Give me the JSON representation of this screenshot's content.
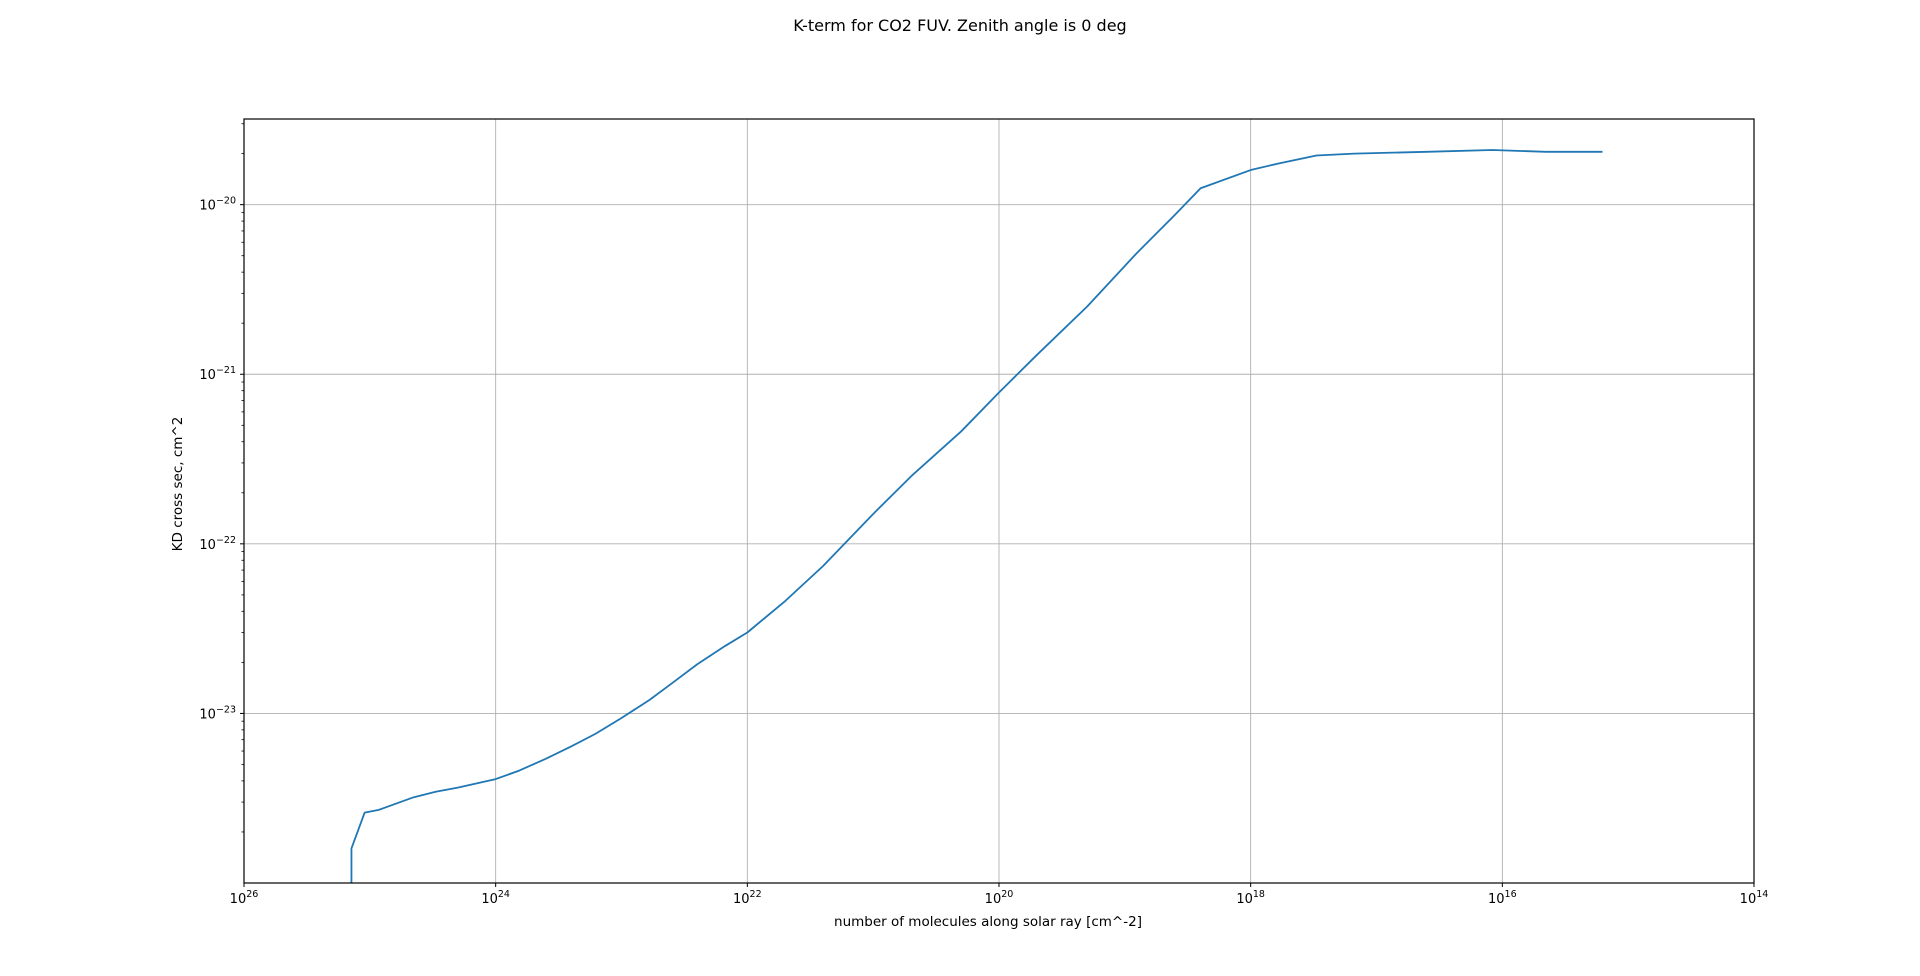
{
  "chart_data": {
    "type": "line",
    "title": "K-term for CO2 FUV. Zenith angle is 0 deg",
    "xlabel": "number of molecules along solar ray [cm^-2]",
    "ylabel": "KD cross sec, cm^2",
    "x_scale": "log",
    "y_scale": "log",
    "x_inverted": true,
    "xlim": [
      1e+26,
      100000000000000.0
    ],
    "ylim": [
      1e-24,
      3.2e-20
    ],
    "grid": true,
    "x_ticks": [
      {
        "base": "10",
        "exp": "26",
        "value": 1e+26
      },
      {
        "base": "10",
        "exp": "24",
        "value": 1e+24
      },
      {
        "base": "10",
        "exp": "22",
        "value": 1e+22
      },
      {
        "base": "10",
        "exp": "20",
        "value": 1e+20
      },
      {
        "base": "10",
        "exp": "18",
        "value": 1e+18
      },
      {
        "base": "10",
        "exp": "16",
        "value": 1e+16
      },
      {
        "base": "10",
        "exp": "14",
        "value": 100000000000000.0
      }
    ],
    "y_ticks": [
      {
        "base": "10",
        "exp": "−20",
        "value": 1e-20
      },
      {
        "base": "10",
        "exp": "−21",
        "value": 1e-21
      },
      {
        "base": "10",
        "exp": "−22",
        "value": 1e-22
      },
      {
        "base": "10",
        "exp": "−23",
        "value": 1e-23
      }
    ],
    "series": [
      {
        "color": "#1f77b4",
        "x": [
          1.4e+25,
          1.4e+25,
          1.1e+25,
          8.5e+24,
          4.5e+24,
          3e+24,
          2e+24,
          1e+24,
          6.5e+23,
          4e+23,
          2.5e+23,
          1.6e+23,
          1e+23,
          6e+22,
          4e+22,
          2.5e+22,
          1.5e+22,
          1e+22,
          5e+21,
          2.5e+21,
          1e+21,
          5e+20,
          2e+20,
          1e+20,
          5e+19,
          2e+19,
          8e+18,
          4e+18,
          2.5e+18,
          1e+18,
          6e+17,
          3e+17,
          1.5e+17,
          4e+16,
          1.2e+16,
          4500000000000000.0,
          1600000000000000.0
        ],
        "y": [
          1e-24,
          1.6e-24,
          2.6e-24,
          2.7e-24,
          3.2e-24,
          3.45e-24,
          3.65e-24,
          4.1e-24,
          4.6e-24,
          5.4e-24,
          6.4e-24,
          7.6e-24,
          9.4e-24,
          1.2e-23,
          1.5e-23,
          1.95e-23,
          2.5e-23,
          3e-23,
          4.6e-23,
          7.4e-23,
          1.5e-22,
          2.5e-22,
          4.6e-22,
          7.8e-22,
          1.3e-21,
          2.5e-21,
          5.2e-21,
          8.7e-21,
          1.25e-20,
          1.6e-20,
          1.75e-20,
          1.95e-20,
          2e-20,
          2.05e-20,
          2.1e-20,
          2.05e-20,
          2.05e-20
        ]
      }
    ]
  }
}
